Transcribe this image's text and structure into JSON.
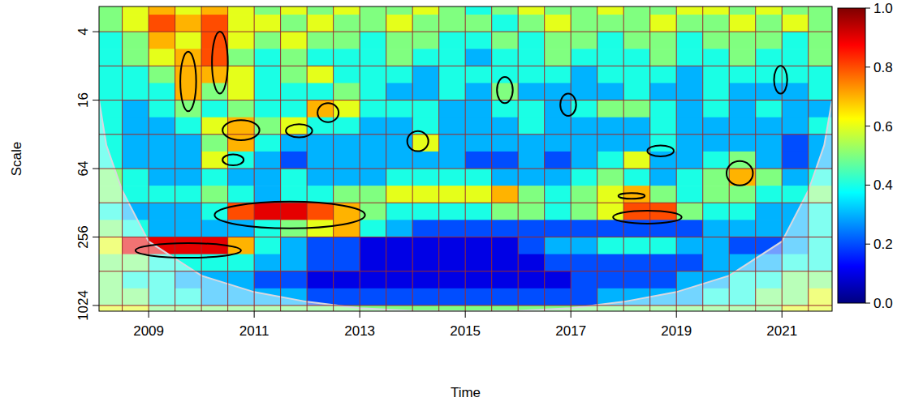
{
  "chart_data": {
    "type": "heatmap",
    "xlabel": "Time",
    "ylabel": "Scale",
    "log": "y",
    "grid": true,
    "xlim": [
      2008.06,
      2021.95
    ],
    "ylim": [
      2.4,
      1150
    ],
    "xticks": [
      2009,
      2011,
      2013,
      2015,
      2017,
      2019,
      2021
    ],
    "yticks": [
      4,
      16,
      64,
      256,
      1024
    ],
    "grid_lines": {
      "x": [
        2008.5,
        2009,
        2009.5,
        2010,
        2010.5,
        2011,
        2011.5,
        2012,
        2012.5,
        2013,
        2013.5,
        2014,
        2014.5,
        2015,
        2015.5,
        2016,
        2016.5,
        2017,
        2017.5,
        2018,
        2018.5,
        2019,
        2019.5,
        2020,
        2020.5,
        2021,
        2021.5
      ],
      "y": [
        4,
        8,
        16,
        32,
        64,
        128,
        256,
        512,
        1024
      ]
    },
    "x_bins": [
      2008,
      2008.5,
      2009,
      2009.5,
      2010,
      2010.5,
      2011,
      2011.5,
      2012,
      2012.5,
      2013,
      2013.5,
      2014,
      2014.5,
      2015,
      2015.5,
      2016,
      2016.5,
      2017,
      2017.5,
      2018,
      2018.5,
      2019,
      2019.5,
      2020,
      2020.5,
      2021,
      2021.5,
      2022
    ],
    "y_bins": [
      2,
      2.83,
      4,
      5.66,
      8,
      11.31,
      16,
      22.63,
      32,
      45.25,
      64,
      90.51,
      128,
      181.02,
      256,
      362.04,
      512,
      724.08,
      1024,
      1448.15
    ],
    "cells": [
      [
        0.5,
        0.6,
        0.7,
        0.6,
        0.7,
        0.6,
        0.5,
        0.6,
        0.5,
        0.6,
        0.5,
        0.5,
        0.6,
        0.5,
        0.4,
        0.5,
        0.6,
        0.5,
        0.5,
        0.6,
        0.5,
        0.5,
        0.6,
        0.6,
        0.5,
        0.6,
        0.5,
        0.5
      ],
      [
        0.5,
        0.6,
        0.8,
        0.7,
        0.8,
        0.6,
        0.6,
        0.5,
        0.6,
        0.5,
        0.5,
        0.6,
        0.5,
        0.5,
        0.5,
        0.4,
        0.5,
        0.6,
        0.5,
        0.5,
        0.5,
        0.6,
        0.5,
        0.5,
        0.6,
        0.5,
        0.6,
        0.5
      ],
      [
        0.4,
        0.5,
        0.7,
        0.6,
        0.8,
        0.6,
        0.5,
        0.6,
        0.5,
        0.5,
        0.4,
        0.5,
        0.5,
        0.4,
        0.4,
        0.5,
        0.4,
        0.5,
        0.5,
        0.4,
        0.5,
        0.5,
        0.4,
        0.5,
        0.5,
        0.5,
        0.4,
        0.5
      ],
      [
        0.4,
        0.5,
        0.6,
        0.7,
        0.8,
        0.5,
        0.4,
        0.5,
        0.4,
        0.4,
        0.4,
        0.5,
        0.4,
        0.4,
        0.3,
        0.4,
        0.4,
        0.5,
        0.4,
        0.4,
        0.4,
        0.5,
        0.4,
        0.4,
        0.5,
        0.4,
        0.4,
        0.5
      ],
      [
        0.4,
        0.4,
        0.5,
        0.7,
        0.7,
        0.6,
        0.4,
        0.5,
        0.6,
        0.4,
        0.4,
        0.4,
        0.3,
        0.4,
        0.4,
        0.4,
        0.4,
        0.4,
        0.3,
        0.4,
        0.4,
        0.4,
        0.3,
        0.4,
        0.4,
        0.4,
        0.4,
        0.4
      ],
      [
        0.4,
        0.4,
        0.4,
        0.7,
        0.5,
        0.6,
        0.4,
        0.4,
        0.4,
        0.5,
        0.4,
        0.3,
        0.3,
        0.4,
        0.3,
        0.5,
        0.3,
        0.3,
        0.3,
        0.3,
        0.4,
        0.3,
        0.3,
        0.4,
        0.3,
        0.3,
        0.3,
        0.4
      ],
      [
        0.4,
        0.3,
        0.4,
        0.5,
        0.4,
        0.5,
        0.4,
        0.4,
        0.7,
        0.6,
        0.4,
        0.4,
        0.4,
        0.3,
        0.3,
        0.4,
        0.4,
        0.3,
        0.4,
        0.5,
        0.5,
        0.4,
        0.3,
        0.4,
        0.3,
        0.4,
        0.3,
        0.3
      ],
      [
        0.4,
        0.3,
        0.3,
        0.4,
        0.6,
        0.7,
        0.5,
        0.6,
        0.4,
        0.4,
        0.3,
        0.3,
        0.4,
        0.3,
        0.3,
        0.3,
        0.4,
        0.3,
        0.3,
        0.3,
        0.3,
        0.4,
        0.3,
        0.3,
        0.3,
        0.3,
        0.3,
        0.4
      ],
      [
        0.4,
        0.3,
        0.3,
        0.3,
        0.5,
        0.7,
        0.4,
        0.3,
        0.3,
        0.3,
        0.3,
        0.3,
        0.6,
        0.3,
        0.3,
        0.3,
        0.3,
        0.3,
        0.3,
        0.3,
        0.3,
        0.4,
        0.3,
        0.3,
        0.3,
        0.3,
        0.2,
        0.3
      ],
      [
        0.4,
        0.3,
        0.3,
        0.3,
        0.6,
        0.4,
        0.3,
        0.2,
        0.3,
        0.3,
        0.3,
        0.3,
        0.3,
        0.3,
        0.2,
        0.2,
        0.3,
        0.2,
        0.3,
        0.4,
        0.6,
        0.3,
        0.3,
        0.4,
        0.5,
        0.3,
        0.2,
        0.3
      ],
      [
        0.5,
        0.4,
        0.3,
        0.3,
        0.4,
        0.3,
        0.3,
        0.4,
        0.3,
        0.3,
        0.3,
        0.4,
        0.4,
        0.4,
        0.4,
        0.3,
        0.3,
        0.3,
        0.4,
        0.5,
        0.4,
        0.3,
        0.4,
        0.5,
        0.7,
        0.5,
        0.3,
        0.4
      ],
      [
        0.5,
        0.4,
        0.4,
        0.4,
        0.5,
        0.4,
        0.3,
        0.4,
        0.4,
        0.5,
        0.5,
        0.6,
        0.6,
        0.6,
        0.6,
        0.7,
        0.5,
        0.4,
        0.5,
        0.6,
        0.7,
        0.5,
        0.4,
        0.5,
        0.5,
        0.4,
        0.4,
        0.5
      ],
      [
        0.4,
        0.3,
        0.3,
        0.3,
        0.4,
        0.8,
        0.9,
        0.9,
        0.8,
        0.7,
        0.5,
        0.4,
        0.4,
        0.4,
        0.4,
        0.5,
        0.5,
        0.4,
        0.5,
        0.6,
        0.8,
        0.8,
        0.5,
        0.4,
        0.4,
        0.3,
        0.3,
        0.4
      ],
      [
        0.5,
        0.4,
        0.3,
        0.3,
        0.3,
        0.3,
        0.4,
        0.5,
        0.6,
        0.7,
        0.4,
        0.3,
        0.2,
        0.2,
        0.2,
        0.2,
        0.2,
        0.2,
        0.2,
        0.2,
        0.2,
        0.2,
        0.2,
        0.3,
        0.3,
        0.3,
        0.3,
        0.4
      ],
      [
        0.6,
        0.9,
        0.9,
        0.9,
        0.9,
        0.7,
        0.4,
        0.3,
        0.2,
        0.2,
        0.1,
        0.1,
        0.1,
        0.1,
        0.1,
        0.1,
        0.2,
        0.3,
        0.3,
        0.4,
        0.4,
        0.4,
        0.3,
        0.3,
        0.2,
        0.2,
        0.3,
        0.4
      ],
      [
        0.5,
        0.5,
        0.4,
        0.4,
        0.4,
        0.4,
        0.3,
        0.3,
        0.2,
        0.2,
        0.1,
        0.1,
        0.1,
        0.1,
        0.1,
        0.1,
        0.1,
        0.2,
        0.2,
        0.2,
        0.2,
        0.2,
        0.2,
        0.3,
        0.3,
        0.3,
        0.4,
        0.4
      ],
      [
        0.5,
        0.4,
        0.4,
        0.3,
        0.3,
        0.3,
        0.2,
        0.2,
        0.1,
        0.1,
        0.1,
        0.1,
        0.1,
        0.1,
        0.1,
        0.1,
        0.1,
        0.1,
        0.2,
        0.2,
        0.2,
        0.2,
        0.3,
        0.3,
        0.4,
        0.4,
        0.5,
        0.5
      ],
      [
        0.5,
        0.5,
        0.4,
        0.4,
        0.3,
        0.3,
        0.3,
        0.3,
        0.2,
        0.2,
        0.2,
        0.2,
        0.2,
        0.2,
        0.2,
        0.2,
        0.2,
        0.2,
        0.2,
        0.3,
        0.3,
        0.3,
        0.3,
        0.4,
        0.4,
        0.5,
        0.5,
        0.6
      ],
      [
        0.6,
        0.6,
        0.5,
        0.5,
        0.5,
        0.5,
        0.5,
        0.5,
        0.5,
        0.5,
        0.5,
        0.5,
        0.5,
        0.5,
        0.5,
        0.5,
        0.5,
        0.5,
        0.5,
        0.5,
        0.5,
        0.5,
        0.5,
        0.5,
        0.5,
        0.5,
        0.6,
        0.6
      ]
    ],
    "colorbar": {
      "range": [
        0,
        1
      ],
      "ticks": [
        {
          "value": 0,
          "label": "0.0"
        },
        {
          "value": 0.2,
          "label": "0.2"
        },
        {
          "value": 0.4,
          "label": "0.4"
        },
        {
          "value": 0.6,
          "label": "0.6"
        },
        {
          "value": 0.8,
          "label": "0.8"
        },
        {
          "value": 1,
          "label": "1.0"
        }
      ]
    },
    "coi": {
      "x": [
        2008.06,
        2008.2,
        2008.5,
        2009,
        2010,
        2011,
        2012,
        2013,
        2014,
        2015,
        2016,
        2017,
        2018,
        2019,
        2020,
        2021,
        2021.5,
        2021.8,
        2021.95
      ],
      "scale": [
        16,
        40,
        100,
        280,
        560,
        780,
        950,
        1080,
        1140,
        1150,
        1140,
        1080,
        950,
        780,
        560,
        280,
        100,
        40,
        16
      ]
    },
    "significant_regions": [
      {
        "x": [
          2008.75,
          2010.75
        ],
        "scale": [
          290,
          390
        ]
      },
      {
        "x": [
          2010.25,
          2013.1
        ],
        "scale": [
          125,
          215
        ]
      },
      {
        "x": [
          2017.8,
          2019.1
        ],
        "scale": [
          150,
          195
        ]
      },
      {
        "x": [
          2017.9,
          2018.4
        ],
        "scale": [
          105,
          118
        ]
      },
      {
        "x": [
          2019.95,
          2020.45
        ],
        "scale": [
          55,
          90
        ]
      },
      {
        "x": [
          2018.45,
          2018.95
        ],
        "scale": [
          40,
          50
        ]
      },
      {
        "x": [
          2013.9,
          2014.3
        ],
        "scale": [
          30,
          45
        ]
      },
      {
        "x": [
          2010.4,
          2011.1
        ],
        "scale": [
          24,
          36
        ]
      },
      {
        "x": [
          2010.4,
          2010.8
        ],
        "scale": [
          48,
          60
        ]
      },
      {
        "x": [
          2012.2,
          2012.6
        ],
        "scale": [
          17,
          25
        ]
      },
      {
        "x": [
          2011.6,
          2012.1
        ],
        "scale": [
          26,
          34
        ]
      },
      {
        "x": [
          2009.6,
          2009.9
        ],
        "scale": [
          6,
          20
        ]
      },
      {
        "x": [
          2010.2,
          2010.5
        ],
        "scale": [
          4,
          14
        ]
      },
      {
        "x": [
          2015.6,
          2015.9
        ],
        "scale": [
          10,
          17
        ]
      },
      {
        "x": [
          2020.85,
          2021.1
        ],
        "scale": [
          8,
          14
        ]
      },
      {
        "x": [
          2016.8,
          2017.1
        ],
        "scale": [
          14,
          22
        ]
      }
    ]
  }
}
